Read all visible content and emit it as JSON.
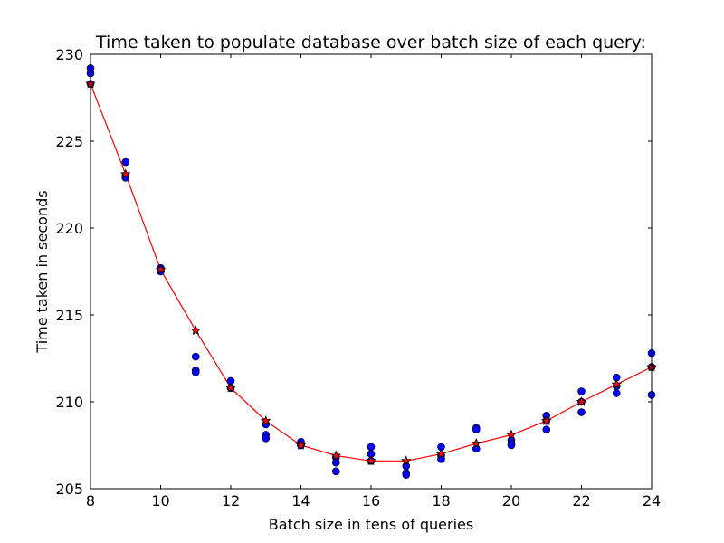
{
  "chart_data": {
    "type": "scatter",
    "title": "Time taken to populate database over batch size of each query:",
    "xlabel": "Batch size in tens of queries",
    "ylabel": "Time taken in seconds",
    "xlim": [
      8,
      24
    ],
    "ylim": [
      205,
      230
    ],
    "x_ticks": [
      8,
      10,
      12,
      14,
      16,
      18,
      20,
      22,
      24
    ],
    "y_ticks": [
      205,
      210,
      215,
      220,
      225,
      230
    ],
    "grid": false,
    "legend": "none",
    "series": [
      {
        "kind": "points",
        "marker": "circle",
        "color": "#0000ff",
        "points": [
          [
            8,
            229.2
          ],
          [
            8,
            228.9
          ],
          [
            8,
            228.3
          ],
          [
            9,
            223.8
          ],
          [
            9,
            223.0
          ],
          [
            9,
            222.9
          ],
          [
            10,
            217.7
          ],
          [
            10,
            217.6
          ],
          [
            10,
            217.5
          ],
          [
            11,
            212.6
          ],
          [
            11,
            211.8
          ],
          [
            11,
            211.7
          ],
          [
            12,
            211.2
          ],
          [
            12,
            210.8
          ],
          [
            12,
            210.8
          ],
          [
            13,
            208.7
          ],
          [
            13,
            208.1
          ],
          [
            13,
            207.9
          ],
          [
            14,
            207.7
          ],
          [
            14,
            207.5
          ],
          [
            14,
            207.5
          ],
          [
            15,
            206.8
          ],
          [
            15,
            206.5
          ],
          [
            15,
            206.0
          ],
          [
            16,
            207.4
          ],
          [
            16,
            207.0
          ],
          [
            16,
            206.6
          ],
          [
            17,
            206.3
          ],
          [
            17,
            205.9
          ],
          [
            17,
            205.8
          ],
          [
            18,
            207.4
          ],
          [
            18,
            206.9
          ],
          [
            18,
            206.7
          ],
          [
            19,
            208.5
          ],
          [
            19,
            208.4
          ],
          [
            19,
            207.3
          ],
          [
            20,
            207.8
          ],
          [
            20,
            207.6
          ],
          [
            20,
            207.5
          ],
          [
            21,
            209.2
          ],
          [
            21,
            208.9
          ],
          [
            21,
            208.4
          ],
          [
            22,
            210.6
          ],
          [
            22,
            210.0
          ],
          [
            22,
            209.4
          ],
          [
            23,
            211.4
          ],
          [
            23,
            210.9
          ],
          [
            23,
            210.5
          ],
          [
            24,
            212.8
          ],
          [
            24,
            212.0
          ],
          [
            24,
            210.4
          ]
        ]
      },
      {
        "kind": "line",
        "marker": "star",
        "color": "#ff0000",
        "x": [
          8,
          9,
          10,
          11,
          12,
          13,
          14,
          15,
          16,
          17,
          18,
          19,
          20,
          21,
          22,
          23,
          24
        ],
        "y": [
          228.3,
          223.1,
          217.6,
          214.1,
          210.8,
          208.9,
          207.5,
          206.9,
          206.6,
          206.6,
          207.0,
          207.6,
          208.1,
          208.9,
          210.0,
          211.0,
          212.0
        ]
      }
    ]
  }
}
